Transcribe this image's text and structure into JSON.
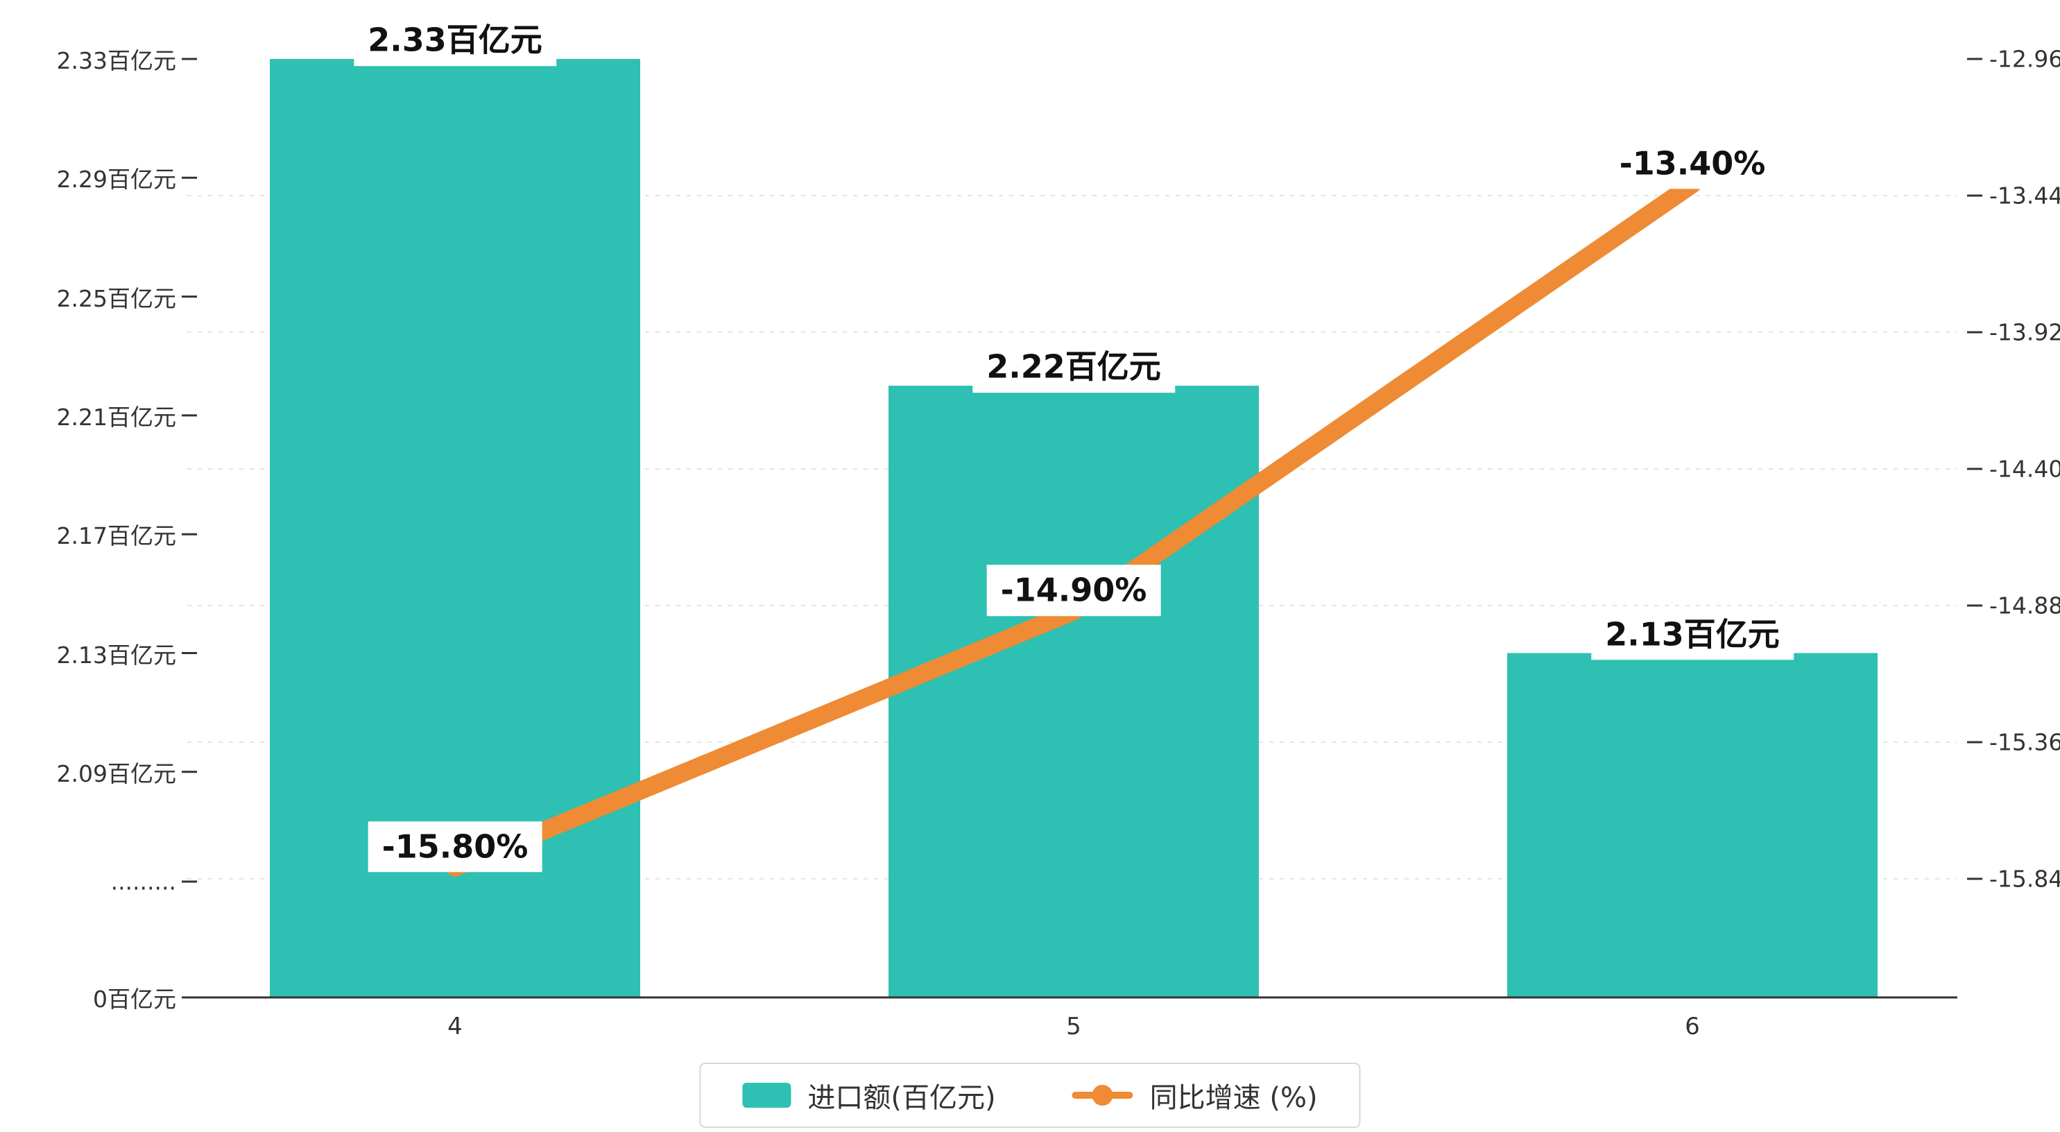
{
  "chart_data": {
    "type": "bar",
    "subtype": "bar-line-combo",
    "categories": [
      "4",
      "5",
      "6"
    ],
    "series": [
      {
        "name": "进口额(百亿元)",
        "type": "bar",
        "values": [
          2.33,
          2.22,
          2.13
        ],
        "data_labels": [
          "2.33百亿元",
          "2.22百亿元",
          "2.13百亿元"
        ],
        "color": "#2ec0b2",
        "axis": "left"
      },
      {
        "name": "同比增速 (%)",
        "type": "line",
        "values": [
          -15.8,
          -14.9,
          -13.4
        ],
        "data_labels": [
          "-15.80%",
          "-14.90%",
          "-13.40%"
        ],
        "color": "#ee8b34",
        "axis": "right"
      }
    ],
    "left_axis": {
      "tick_values": [
        2.33,
        2.29,
        2.25,
        2.21,
        2.17,
        2.13,
        2.09
      ],
      "tick_labels": [
        "2.33百亿元",
        "2.29百亿元",
        "2.25百亿元",
        "2.21百亿元",
        "2.17百亿元",
        "2.13百亿元",
        "2.09百亿元"
      ],
      "break_label": ".........",
      "zero_label": "0百亿元",
      "range_top": 2.33,
      "range_visible_bottom": 2.09,
      "axis_break": true
    },
    "right_axis": {
      "tick_values": [
        -12.96,
        -13.44,
        -13.92,
        -14.4,
        -14.88,
        -15.36,
        -15.84
      ],
      "tick_labels": [
        "-12.96",
        "-13.44",
        "-13.92",
        "-14.40",
        "-14.88",
        "-15.36",
        "-15.84"
      ],
      "max": -12.96,
      "min": -15.84
    },
    "grid": "horizontal-dashed",
    "legend_position": "bottom-center",
    "title": "",
    "xlabel": "",
    "ylabel": ""
  }
}
